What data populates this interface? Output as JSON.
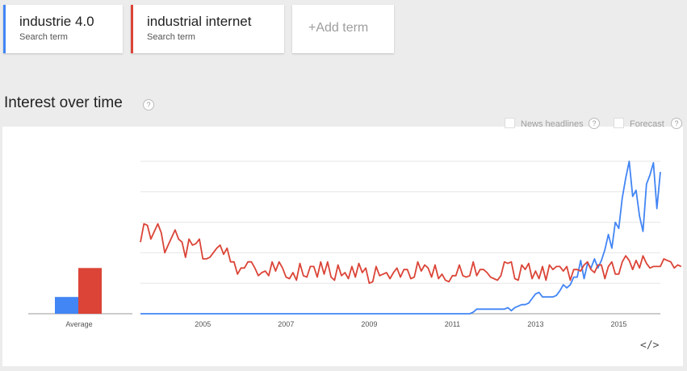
{
  "terms": [
    {
      "name": "industrie 4.0",
      "sub": "Search term",
      "color": "#4285f4"
    },
    {
      "name": "industrial internet",
      "sub": "Search term",
      "color": "#db4437"
    }
  ],
  "add_term": {
    "plus": "+",
    "label": "Add term"
  },
  "section": {
    "title": "Interest over time",
    "help": "?"
  },
  "options": {
    "news": "News headlines",
    "forecast": "Forecast",
    "help": "?"
  },
  "embed": "</>",
  "chart_data": {
    "type": "line",
    "x_start": "2004-01",
    "x_step": "month",
    "xticks": [
      "2005",
      "2007",
      "2009",
      "2011",
      "2013",
      "2015"
    ],
    "ylim": [
      0,
      100
    ],
    "grid": true,
    "average": {
      "label": "Average",
      "values": [
        11,
        30
      ]
    },
    "series": [
      {
        "name": "industrie 4.0",
        "color": "#4285f4",
        "values": [
          0,
          0,
          0,
          0,
          0,
          0,
          0,
          0,
          0,
          0,
          0,
          0,
          0,
          0,
          0,
          0,
          0,
          0,
          0,
          0,
          0,
          0,
          0,
          0,
          0,
          0,
          0,
          0,
          0,
          0,
          0,
          0,
          0,
          0,
          0,
          0,
          0,
          0,
          0,
          0,
          0,
          0,
          0,
          0,
          0,
          0,
          0,
          0,
          0,
          0,
          0,
          0,
          0,
          0,
          0,
          0,
          0,
          0,
          0,
          0,
          0,
          0,
          0,
          0,
          0,
          0,
          0,
          0,
          0,
          0,
          0,
          0,
          0,
          0,
          0,
          0,
          0,
          0,
          0,
          0,
          0,
          0,
          0,
          0,
          0,
          0,
          0,
          0,
          0,
          0,
          0,
          0,
          0,
          0,
          0,
          0,
          1,
          3,
          3,
          3,
          3,
          3,
          3,
          3,
          3,
          3,
          4,
          2,
          4,
          5,
          6,
          6,
          7,
          10,
          13,
          14,
          11,
          11,
          11,
          11,
          12,
          15,
          19,
          17,
          19,
          24,
          24,
          35,
          23,
          33,
          30,
          36,
          30,
          35,
          42,
          52,
          43,
          60,
          56,
          76,
          89,
          100,
          77,
          81,
          64,
          54,
          85,
          91,
          99,
          69,
          93
        ]
      },
      {
        "name": "industrial internet",
        "color": "#db4437",
        "values": [
          47,
          59,
          58,
          49,
          54,
          59,
          53,
          40,
          45,
          50,
          55,
          49,
          47,
          37,
          49,
          45,
          46,
          49,
          36,
          36,
          37,
          40,
          43,
          45,
          39,
          43,
          34,
          34,
          26,
          30,
          30,
          34,
          34,
          30,
          25,
          27,
          28,
          25,
          34,
          28,
          34,
          30,
          24,
          23,
          27,
          22,
          33,
          25,
          24,
          31,
          31,
          24,
          34,
          26,
          34,
          24,
          22,
          32,
          25,
          27,
          23,
          31,
          24,
          33,
          27,
          30,
          20,
          21,
          31,
          25,
          26,
          27,
          23,
          27,
          30,
          24,
          29,
          29,
          23,
          24,
          34,
          28,
          32,
          30,
          24,
          32,
          23,
          26,
          22,
          21,
          25,
          25,
          32,
          25,
          24,
          25,
          34,
          25,
          29,
          29,
          27,
          24,
          23,
          22,
          25,
          34,
          33,
          34,
          23,
          22,
          32,
          29,
          33,
          23,
          28,
          23,
          31,
          22,
          32,
          29,
          31,
          31,
          28,
          31,
          22,
          29,
          29,
          28,
          32,
          34,
          29,
          27,
          32,
          32,
          23,
          31,
          34,
          26,
          26,
          34,
          38,
          35,
          29,
          35,
          30,
          38,
          33,
          30,
          31,
          31,
          31,
          36,
          35,
          34,
          30,
          32,
          31
        ]
      }
    ]
  }
}
